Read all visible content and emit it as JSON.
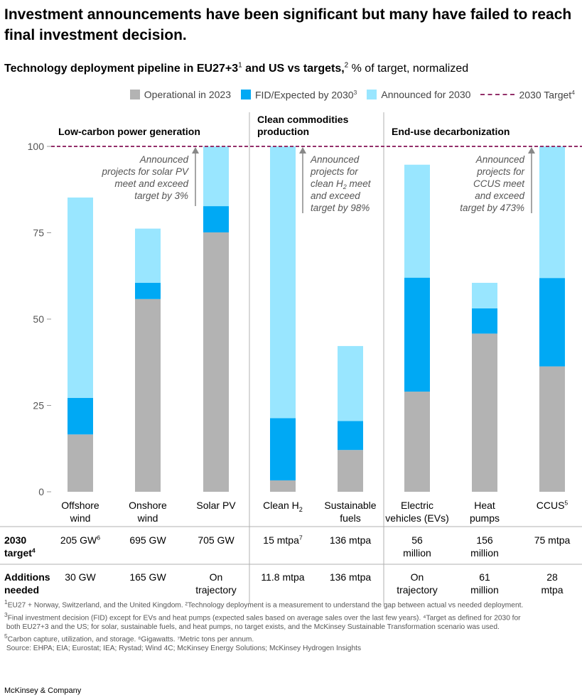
{
  "header": {
    "title": "Investment announcements have been significant but many have failed to reach final investment decision.",
    "subtitle_bold": "Technology deployment pipeline in EU27+3",
    "subtitle_sup1": "1",
    "subtitle_bold2": " and US vs targets,",
    "subtitle_sup2": "2",
    "subtitle_rest": " % of target, normalized"
  },
  "legend": {
    "operational": "Operational in 2023",
    "fid": "FID/Expected by 2030",
    "fid_sup": "3",
    "announced": "Announced for 2030",
    "target": "2030 Target",
    "target_sup": "4"
  },
  "colors": {
    "operational": "#b3b3b3",
    "fid": "#00a9f4",
    "announced": "#99e6ff",
    "target": "#93306a"
  },
  "groups": {
    "power": "Low-carbon power generation",
    "commodities": "Clean commodities production",
    "enduse": "End-use decarbonization"
  },
  "annotations": {
    "solar": [
      "Announced",
      "projects for solar PV",
      "meet and exceed",
      "target by 3%"
    ],
    "h2_line1": "Announced",
    "h2_line2": "projects for",
    "h2_line3a": "clean H",
    "h2_line3sub": "2",
    "h2_line3b": " meet",
    "h2_line4": "and exceed",
    "h2_line5": "target by 98%",
    "ccus": [
      "Announced",
      "projects for",
      "CCUS meet",
      "and exceed",
      "target by 473%"
    ]
  },
  "chart_data": {
    "type": "bar",
    "stacked": true,
    "categories": [
      "Offshore wind",
      "Onshore wind",
      "Solar PV",
      "Clean H2",
      "Sustainable fuels",
      "Electric vehicles (EVs)",
      "Heat pumps",
      "CCUS"
    ],
    "series": [
      {
        "name": "Operational in 2023",
        "values": [
          16.6,
          55.8,
          75.1,
          3.3,
          12.1,
          29.0,
          45.8,
          36.3
        ]
      },
      {
        "name": "FID/Expected by 2030",
        "values": [
          10.6,
          4.7,
          7.6,
          18.0,
          8.4,
          33.0,
          7.3,
          25.6
        ]
      },
      {
        "name": "Announced for 2030",
        "values": [
          58.0,
          15.7,
          17.3,
          78.7,
          21.7,
          32.7,
          7.4,
          38.1
        ]
      }
    ],
    "target": 100,
    "ylim": [
      0,
      100
    ],
    "yticks": [
      0,
      25,
      50,
      75,
      100
    ],
    "grid": false,
    "legend_position": "top-right"
  },
  "xlabels": [
    {
      "lines": [
        "Offshore",
        "wind"
      ]
    },
    {
      "lines": [
        "Onshore",
        "wind"
      ]
    },
    {
      "lines": [
        "Solar PV"
      ]
    },
    {
      "main": "Clean H",
      "sub": "2"
    },
    {
      "lines": [
        "Sustainable",
        "fuels"
      ]
    },
    {
      "lines": [
        "Electric",
        "vehicles (EVs)"
      ]
    },
    {
      "lines": [
        "Heat",
        "pumps"
      ]
    },
    {
      "main": "CCUS",
      "sup": "5"
    }
  ],
  "table": {
    "row1_label": "2030",
    "row1_label2": "target",
    "row1_label_sup": "4",
    "row2_label": "Additions",
    "row2_label2": "needed",
    "targets": [
      {
        "text": "205 GW",
        "sup": "6"
      },
      {
        "text": "695 GW"
      },
      {
        "text": "705 GW"
      },
      {
        "text": "15 mtpa",
        "sup": "7"
      },
      {
        "text": "136 mtpa"
      },
      {
        "lines": [
          "56",
          "million"
        ]
      },
      {
        "lines": [
          "156",
          "million"
        ]
      },
      {
        "text": "75 mtpa"
      }
    ],
    "additions": [
      {
        "text": "30 GW"
      },
      {
        "text": "165 GW"
      },
      {
        "lines": [
          "On",
          "trajectory"
        ]
      },
      {
        "text": "11.8 mtpa"
      },
      {
        "text": "136 mtpa"
      },
      {
        "lines": [
          "On",
          "trajectory"
        ]
      },
      {
        "lines": [
          "61",
          "million"
        ]
      },
      {
        "lines": [
          "28",
          "mtpa"
        ]
      }
    ]
  },
  "footnotes": {
    "line1": "EU27 + Norway, Switzerland, and the United Kingdom. ²Technology deployment is a measurement to understand the gap between actual vs needed deployment.",
    "line2": "Final investment decision (FID) except for EVs and heat pumps (expected sales based on average sales over the last few years). ⁴Target as defined for 2030 for",
    "line3": "both EU27+3 and the US; for solar, sustainable fuels, and heat pumps, no target exists, and the McKinsey Sustainable Transformation scenario was used.",
    "line4": "Carbon capture, utilization, and storage. ⁶Gigawatts. ⁷Metric tons per annum.",
    "line5": "Source: EHPA; EIA; Eurostat; IEA; Rystad; Wind 4C; McKinsey Energy Solutions; McKinsey Hydrogen Insights"
  },
  "brand": "McKinsey & Company"
}
